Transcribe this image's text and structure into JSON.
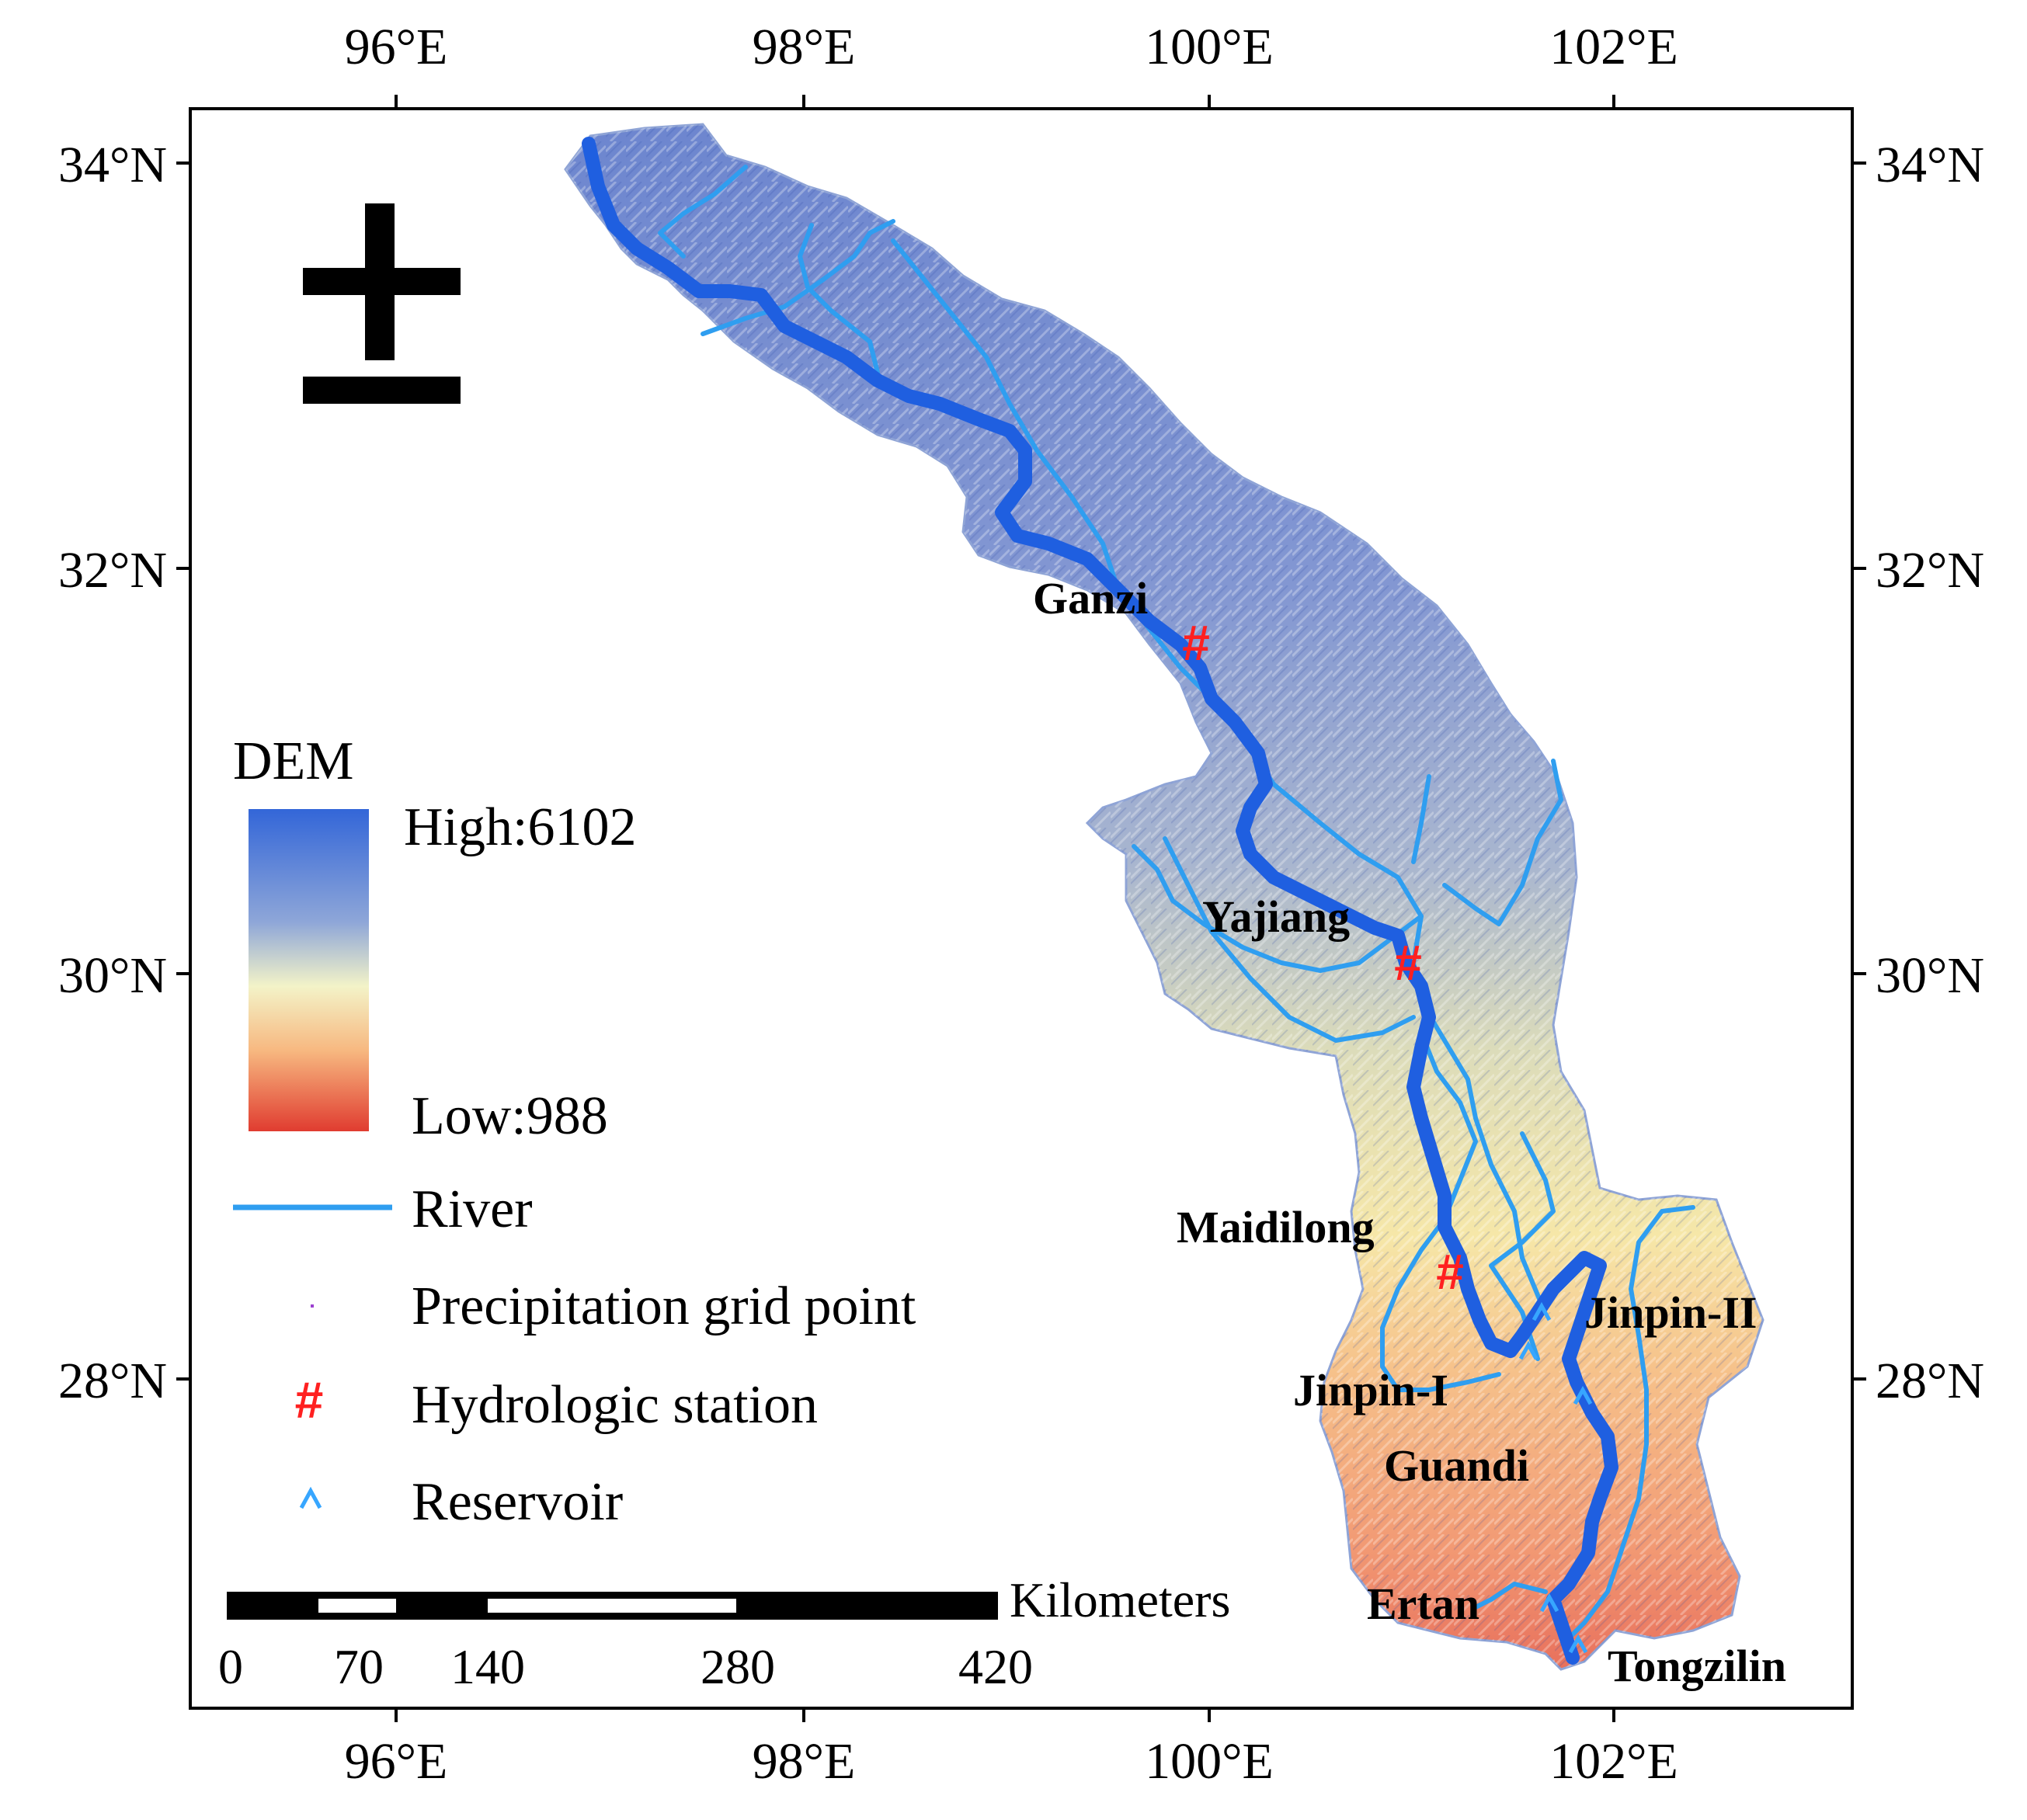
{
  "map": {
    "longitude_ticks": [
      "96°E",
      "98°E",
      "100°E",
      "102°E"
    ],
    "latitude_ticks": [
      "34°N",
      "32°N",
      "30°N",
      "28°N"
    ]
  },
  "legend": {
    "dem_title": "DEM",
    "dem_high": "High:6102",
    "dem_low": "Low:988",
    "river": "River",
    "precipitation": "Precipitation grid point",
    "hydrologic_station": "Hydrologic station",
    "reservoir": "Reservoir",
    "station_symbol": "#",
    "reservoir_symbol": "^"
  },
  "colors": {
    "dem_high": "#3e6fd8",
    "dem_mid": "#f3f2c2",
    "dem_low": "#e14a3a",
    "river": "#2f9ef0",
    "main_river": "#1f5fe0",
    "station": "#ff2020",
    "reservoir": "#37a6ff"
  },
  "stations": [
    "Ganzi",
    "Yajiang",
    "Maidilong"
  ],
  "reservoirs": [
    "Jinpin-II",
    "Jinpin-I",
    "Guandi",
    "Ertan",
    "Tongzilin"
  ],
  "scale_bar": {
    "unit": "Kilometers",
    "labels": [
      "0",
      "70",
      "140",
      "280",
      "420"
    ]
  }
}
